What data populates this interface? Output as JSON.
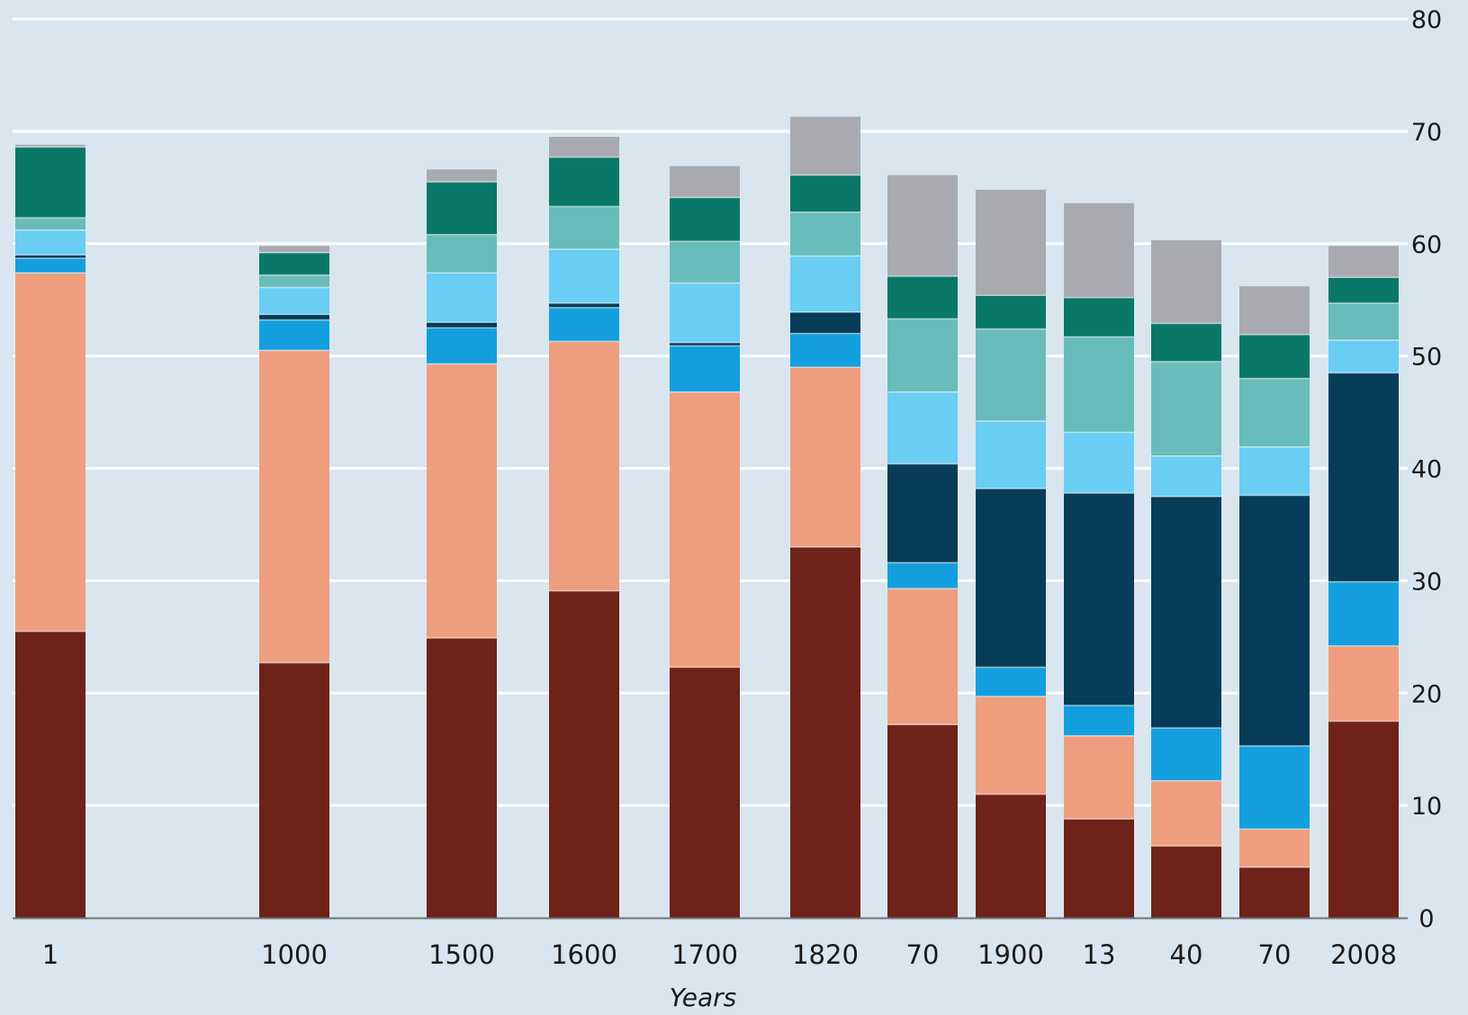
{
  "chart_data": {
    "type": "bar",
    "stacked": true,
    "xlabel": "Years",
    "ylabel": "",
    "ylim": [
      0,
      80
    ],
    "y_ticks": [
      0,
      10,
      20,
      30,
      40,
      50,
      60,
      70,
      80
    ],
    "y_axis_side": "right",
    "grid": true,
    "categories": [
      "1",
      "1000",
      "1500",
      "1600",
      "1700",
      "1820",
      "70",
      "1900",
      "13",
      "40",
      "70",
      "2008"
    ],
    "series": [
      {
        "color": "#6e2218",
        "values": [
          25.5,
          22.7,
          24.9,
          29.1,
          22.3,
          33.0,
          17.2,
          11.0,
          8.8,
          6.4,
          4.5,
          17.5
        ]
      },
      {
        "color": "#ee9e7e",
        "values": [
          31.9,
          27.8,
          24.4,
          22.2,
          24.5,
          16.0,
          12.1,
          8.7,
          7.4,
          5.8,
          3.4,
          6.7
        ]
      },
      {
        "color": "#139fde",
        "values": [
          1.3,
          2.7,
          3.2,
          3.0,
          4.1,
          3.0,
          2.3,
          2.6,
          2.7,
          4.7,
          7.4,
          5.7
        ]
      },
      {
        "color": "#073d58",
        "values": [
          0.3,
          0.5,
          0.5,
          0.4,
          0.3,
          1.9,
          8.8,
          15.9,
          18.9,
          20.6,
          22.3,
          18.6
        ]
      },
      {
        "color": "#69cdf4",
        "values": [
          2.2,
          2.4,
          4.4,
          4.8,
          5.3,
          5.0,
          6.4,
          6.0,
          5.4,
          3.6,
          4.3,
          2.9
        ]
      },
      {
        "color": "#68bcbb",
        "values": [
          1.1,
          1.1,
          3.4,
          3.8,
          3.7,
          3.9,
          6.5,
          8.2,
          8.5,
          8.4,
          6.1,
          3.3
        ]
      },
      {
        "color": "#0a7868",
        "values": [
          6.3,
          2.0,
          4.7,
          4.4,
          3.9,
          3.3,
          3.8,
          3.0,
          3.5,
          3.4,
          3.9,
          2.3
        ]
      },
      {
        "color": "#a8aaaf",
        "values": [
          0.2,
          0.6,
          1.1,
          1.8,
          2.8,
          5.2,
          9.0,
          9.4,
          8.4,
          7.4,
          4.3,
          2.8
        ]
      }
    ]
  }
}
